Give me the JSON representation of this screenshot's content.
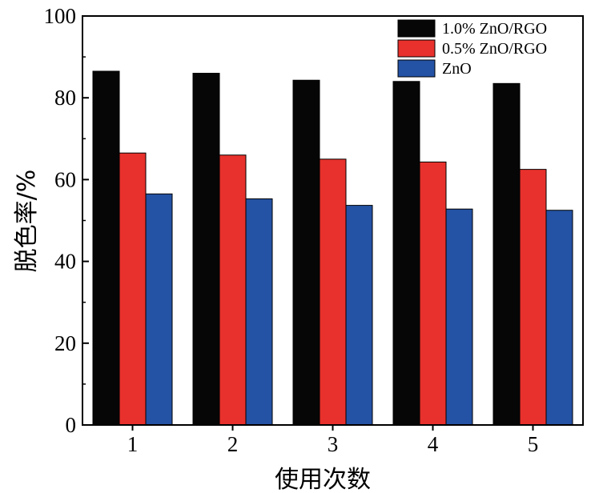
{
  "chart_data": {
    "type": "bar",
    "xlabel": "使用次数",
    "ylabel": "脱色率/%",
    "ylim": [
      0,
      100
    ],
    "yticks": [
      0,
      20,
      40,
      60,
      80,
      100
    ],
    "categories": [
      "1",
      "2",
      "3",
      "4",
      "5"
    ],
    "series": [
      {
        "name": "1.0% ZnO/RGO",
        "color": "#060606",
        "values": [
          86.5,
          86.0,
          84.3,
          84.0,
          83.5
        ]
      },
      {
        "name": "0.5% ZnO/RGO",
        "color": "#e8312c",
        "values": [
          66.5,
          66.0,
          65.0,
          64.3,
          62.5
        ]
      },
      {
        "name": "ZnO",
        "color": "#2452a4",
        "values": [
          56.5,
          55.3,
          53.7,
          52.8,
          52.5
        ]
      }
    ],
    "legend_position": "top-right",
    "grid": false
  }
}
